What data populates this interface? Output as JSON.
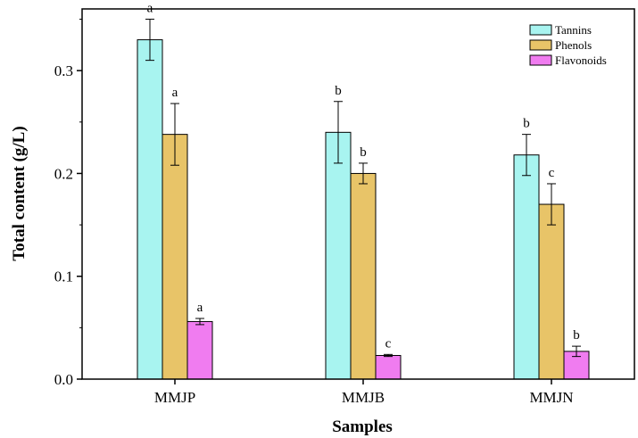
{
  "chart_data": {
    "type": "bar",
    "title": "",
    "xlabel": "Samples",
    "ylabel": "Total content (g/L)",
    "ylim": [
      0,
      0.36
    ],
    "yticks": [
      0.0,
      0.1,
      0.2,
      0.3
    ],
    "ytick_labels": [
      "0.0",
      "0.1",
      "0.2",
      "0.3"
    ],
    "categories": [
      "MMJP",
      "MMJB",
      "MMJN"
    ],
    "legend_position": "top-right",
    "grid": false,
    "series": [
      {
        "name": "Tannins",
        "color": "#a8f4f0",
        "values": [
          0.33,
          0.24,
          0.218
        ],
        "errors": [
          0.02,
          0.03,
          0.02
        ],
        "letters": [
          "a",
          "b",
          "b"
        ]
      },
      {
        "name": "Phenols",
        "color": "#e8c468",
        "values": [
          0.238,
          0.2,
          0.17
        ],
        "errors": [
          0.03,
          0.01,
          0.02
        ],
        "letters": [
          "a",
          "b",
          "c"
        ]
      },
      {
        "name": "Flavonoids",
        "color": "#f07cf0",
        "values": [
          0.056,
          0.023,
          0.027
        ],
        "errors": [
          0.003,
          0.001,
          0.005
        ],
        "letters": [
          "a",
          "c",
          "b"
        ]
      }
    ]
  }
}
